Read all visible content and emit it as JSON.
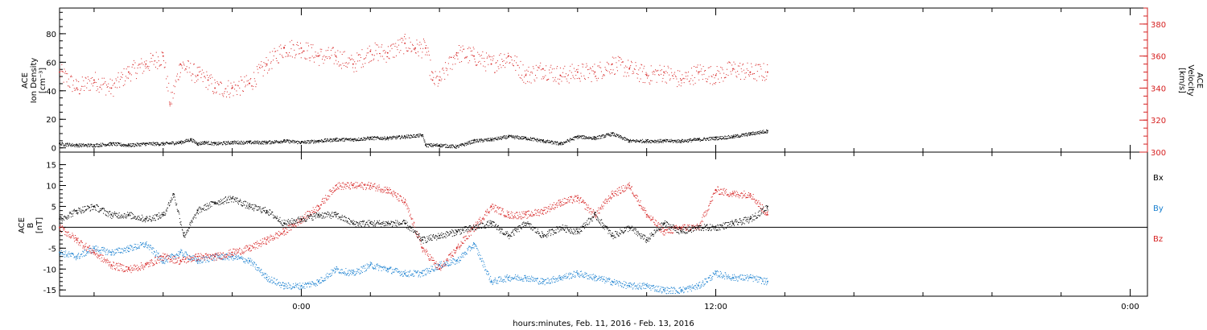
{
  "chart_data": [
    {
      "type": "scatter",
      "panel": "plasma",
      "ylabel_left": [
        "ACE",
        "Ion Density",
        "[cm⁻³]"
      ],
      "ylabel_right": [
        "ACE",
        "Velocity",
        "[km/s]"
      ],
      "yticks_left": [
        "0",
        "20",
        "40",
        "60",
        "80"
      ],
      "yticks_right": [
        "300",
        "320",
        "340",
        "360",
        "380"
      ],
      "ylim_left": [
        -3,
        98
      ],
      "ylim_right": [
        300,
        390
      ],
      "series": [
        {
          "name": "",
          "axis": "left",
          "color": "#000000",
          "t": [
            0,
            0.5,
            1,
            1.5,
            2,
            2.5,
            3,
            3.5,
            3.8,
            4,
            4.2,
            4.5,
            5,
            5.5,
            6,
            6.5,
            7,
            7.5,
            8,
            8.5,
            9,
            9.5,
            10,
            10.5,
            10.6,
            11,
            11.5,
            12,
            12.5,
            13,
            13.5,
            14,
            14.5,
            15,
            15.5,
            16,
            16.5,
            17,
            17.5,
            18,
            18.5,
            19,
            19.5,
            20,
            20.5
          ],
          "values": [
            3,
            2,
            2,
            3,
            2,
            3,
            3,
            4,
            6,
            3,
            4,
            3,
            4,
            4,
            4,
            5,
            4,
            5,
            6,
            6,
            7,
            7,
            8,
            9,
            2,
            2,
            1,
            5,
            6,
            8,
            7,
            5,
            3,
            8,
            7,
            10,
            5,
            5,
            5,
            5,
            6,
            7,
            8,
            10,
            12
          ]
        },
        {
          "name": "",
          "axis": "right",
          "color": "#d62020",
          "t": [
            0,
            0.5,
            1,
            1.5,
            2,
            2.5,
            3,
            3.2,
            3.5,
            4,
            4.3,
            4.5,
            5,
            5.5,
            6,
            6.5,
            7,
            7.5,
            8,
            8.5,
            9,
            9.5,
            10,
            10.3,
            10.6,
            10.8,
            11,
            11.5,
            12,
            12.5,
            13,
            13.5,
            14,
            14.5,
            15,
            15.5,
            16,
            16.5,
            17,
            17.5,
            18,
            18.5,
            19,
            19.5,
            20,
            20.5
          ],
          "values": [
            350,
            340,
            345,
            340,
            350,
            355,
            360,
            330,
            355,
            348,
            345,
            340,
            340,
            343,
            355,
            365,
            365,
            360,
            360,
            355,
            363,
            362,
            368,
            365,
            365,
            345,
            345,
            362,
            360,
            355,
            360,
            348,
            352,
            348,
            350,
            350,
            355,
            352,
            348,
            350,
            345,
            350,
            348,
            352,
            350,
            350
          ]
        }
      ]
    },
    {
      "type": "scatter",
      "panel": "magnetic",
      "ylabel_left": [
        "ACE",
        "B",
        "[nT]"
      ],
      "yticks_left": [
        "-15",
        "-10",
        "-5",
        "0",
        "5",
        "10",
        "15"
      ],
      "ylim_left": [
        -16.5,
        18
      ],
      "legend_placement": "right",
      "series": [
        {
          "name": "Bx",
          "color": "#000000",
          "t": [
            0,
            0.5,
            1,
            1.5,
            2,
            2.5,
            3,
            3.3,
            3.6,
            4,
            4.5,
            5,
            5.5,
            6,
            6.5,
            7,
            7.5,
            8,
            8.5,
            9,
            9.5,
            10,
            10.5,
            11,
            11.5,
            12,
            12.5,
            13,
            13.5,
            14,
            14.5,
            15,
            15.5,
            16,
            16.5,
            17,
            17.5,
            18,
            18.5,
            19,
            19.5,
            20,
            20.5
          ],
          "values": [
            2,
            4,
            5,
            3,
            3,
            2,
            3,
            8,
            -2,
            4,
            6,
            7,
            5,
            4,
            1,
            2,
            3,
            3,
            1,
            1,
            1,
            1,
            -3,
            -2,
            -1,
            0,
            1,
            -2,
            1,
            -2,
            0,
            -1,
            3,
            -2,
            0,
            -3,
            1,
            -1,
            0,
            0,
            1,
            2,
            5
          ]
        },
        {
          "name": "By",
          "color": "#1a80d0",
          "t": [
            0,
            0.5,
            1,
            1.5,
            2,
            2.5,
            3,
            3.5,
            4,
            4.5,
            5,
            5.5,
            6,
            6.5,
            7,
            7.5,
            8,
            8.5,
            9,
            9.5,
            10,
            10.5,
            11,
            11.5,
            12,
            12.5,
            13,
            13.5,
            14,
            14.5,
            15,
            15.5,
            16,
            16.5,
            17,
            17.5,
            18,
            18.5,
            19,
            19.5,
            20,
            20.5
          ],
          "values": [
            -6,
            -7,
            -5,
            -6,
            -5,
            -4,
            -8,
            -6,
            -8,
            -7,
            -7,
            -8,
            -12,
            -14,
            -14,
            -13,
            -10,
            -11,
            -9,
            -10,
            -11,
            -11,
            -9,
            -8,
            -4,
            -13,
            -12,
            -12,
            -13,
            -12,
            -11,
            -12,
            -13,
            -14,
            -14,
            -15,
            -15,
            -14,
            -11,
            -12,
            -12,
            -13
          ]
        },
        {
          "name": "Bz",
          "color": "#d62020",
          "t": [
            0,
            0.5,
            1,
            1.5,
            2,
            2.5,
            3,
            3.5,
            4,
            4.5,
            5,
            5.5,
            6,
            6.5,
            7,
            7.5,
            8,
            8.5,
            9,
            9.5,
            10,
            10.5,
            11,
            11.5,
            12,
            12.5,
            13,
            13.5,
            14,
            14.5,
            15,
            15.5,
            16,
            16.5,
            17,
            17.5,
            18,
            18.5,
            19,
            19.5,
            20,
            20.5
          ],
          "values": [
            0,
            -3,
            -6,
            -9,
            -10,
            -9,
            -7,
            -8,
            -7,
            -7,
            -6,
            -5,
            -3,
            -1,
            2,
            5,
            10,
            10,
            10,
            9,
            6,
            -5,
            -10,
            -5,
            0,
            5,
            3,
            3,
            4,
            6,
            7,
            3,
            8,
            10,
            3,
            -1,
            0,
            0,
            9,
            8,
            8,
            3
          ]
        }
      ]
    }
  ],
  "x_axis": {
    "ticks": [
      {
        "t": 7,
        "label": "0:00"
      },
      {
        "t": 19,
        "label": "12:00"
      },
      {
        "t": 31,
        "label": "0:00"
      }
    ],
    "xlim": [
      0,
      31.5
    ],
    "xlabel": "hours:minutes, Feb. 11, 2016 - Feb. 13, 2016"
  }
}
